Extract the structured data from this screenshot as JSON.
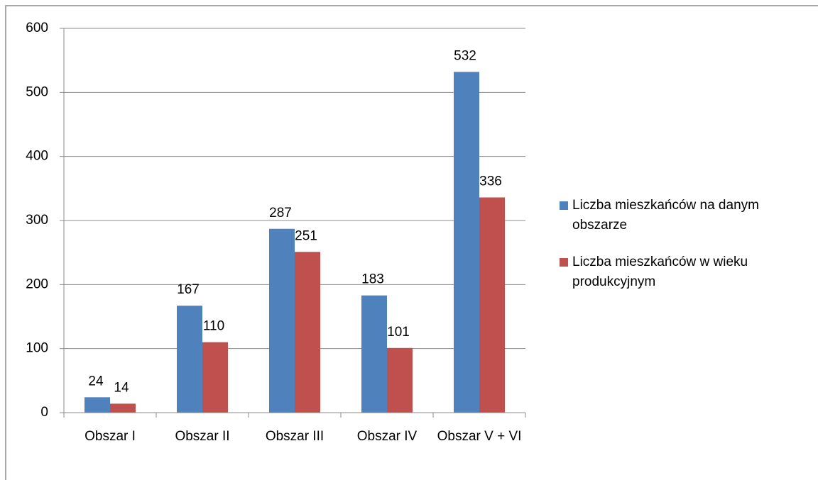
{
  "chart_data": {
    "type": "bar",
    "categories": [
      "Obszar I",
      "Obszar II",
      "Obszar III",
      "Obszar IV",
      "Obszar V + VI"
    ],
    "series": [
      {
        "name": "Liczba mieszkańców na danym obszarze",
        "color": "#4f81bd",
        "values": [
          24,
          167,
          287,
          183,
          532
        ]
      },
      {
        "name": "Liczba mieszkańców w wieku produkcyjnym",
        "color": "#c0504d",
        "values": [
          14,
          110,
          251,
          101,
          336
        ]
      }
    ],
    "ylim": [
      0,
      600
    ],
    "yticks": [
      0,
      100,
      200,
      300,
      400,
      500,
      600
    ],
    "grid": true,
    "legend": "right"
  }
}
